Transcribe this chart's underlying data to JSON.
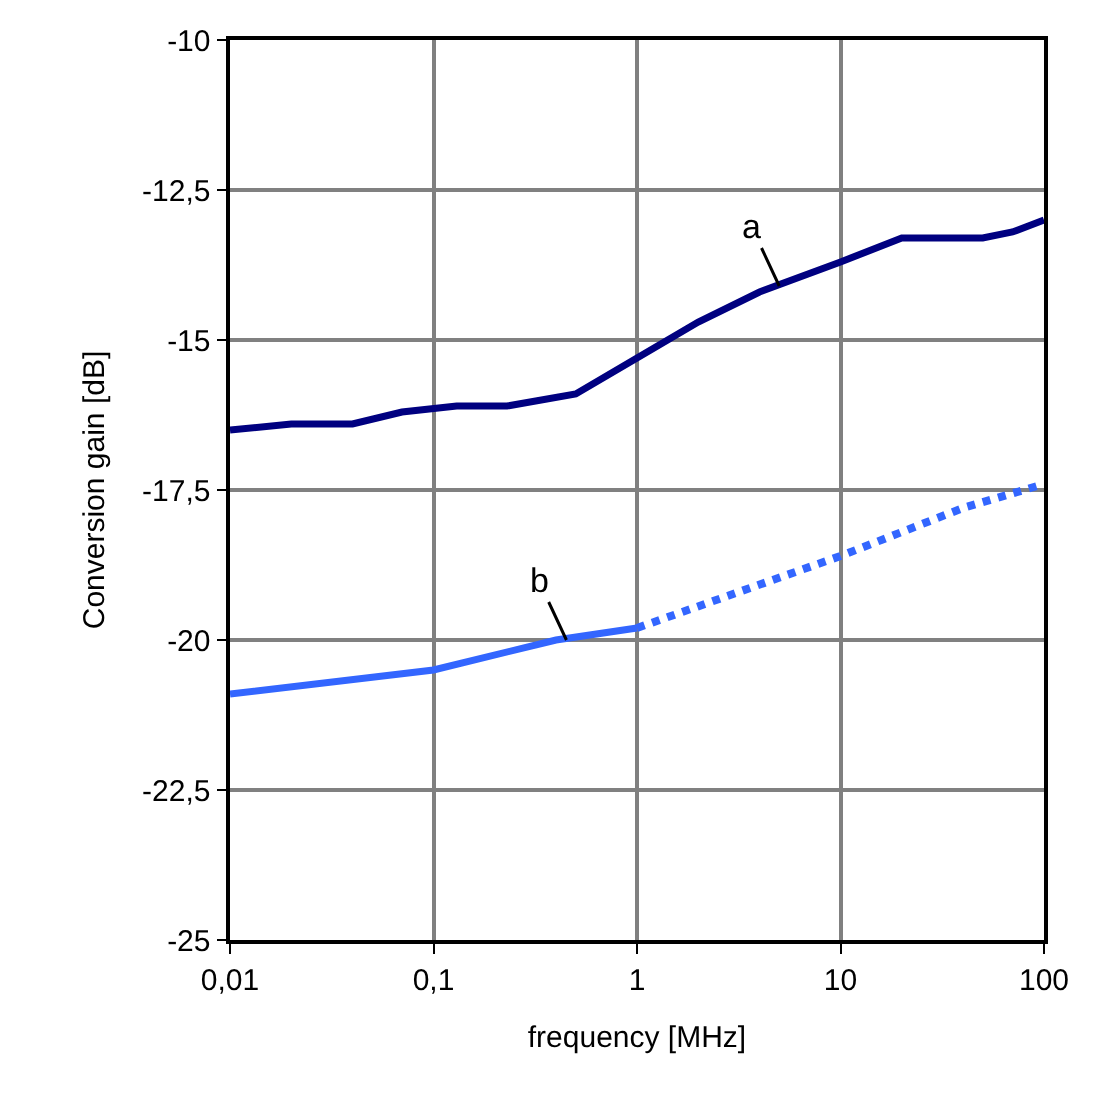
{
  "chart_data": {
    "type": "line",
    "xlabel": "frequency [MHz]",
    "ylabel": "Conversion gain [dB]",
    "log": "x",
    "grid": true,
    "marker": "none",
    "xlim": [
      0.01,
      100
    ],
    "xticks": [
      {
        "value": 0.01,
        "label": "0,01"
      },
      {
        "value": 0.1,
        "label": "0,1"
      },
      1,
      10,
      100
    ],
    "ylim": [
      -25,
      -10
    ],
    "yticks": [
      -25,
      {
        "value": -22.5,
        "label": "-22,5"
      },
      -20,
      {
        "value": -17.5,
        "label": "-17,5"
      },
      -15,
      {
        "value": -12.5,
        "label": "-12,5"
      },
      -10
    ],
    "series": [
      {
        "color": "#000080",
        "line_style": "solid",
        "x": [
          0.01,
          0.02,
          0.04,
          0.07,
          0.13,
          0.23,
          0.5,
          1,
          2,
          4,
          10,
          20,
          30,
          50,
          70,
          100
        ],
        "values": [
          -16.5,
          -16.4,
          -16.4,
          -16.2,
          -16.1,
          -16.1,
          -15.9,
          -15.3,
          -14.7,
          -14.2,
          -13.7,
          -13.3,
          -13.3,
          -13.3,
          -13.2,
          -13.0
        ]
      },
      {
        "color": "#3366ff",
        "line_style": "solid",
        "x": [
          0.01,
          0.1,
          0.4,
          1
        ],
        "values": [
          -20.9,
          -20.5,
          -20.0,
          -19.8
        ]
      },
      {
        "color": "#3366ff",
        "line_style": "dotted",
        "x": [
          1,
          10,
          40,
          100
        ],
        "values": [
          -19.8,
          -18.6,
          -17.8,
          -17.4
        ]
      }
    ],
    "annotations": [
      {
        "text": "a",
        "x": 5,
        "y": -14.1
      },
      {
        "text": "b",
        "x": 0.45,
        "y": -20.0
      }
    ]
  }
}
